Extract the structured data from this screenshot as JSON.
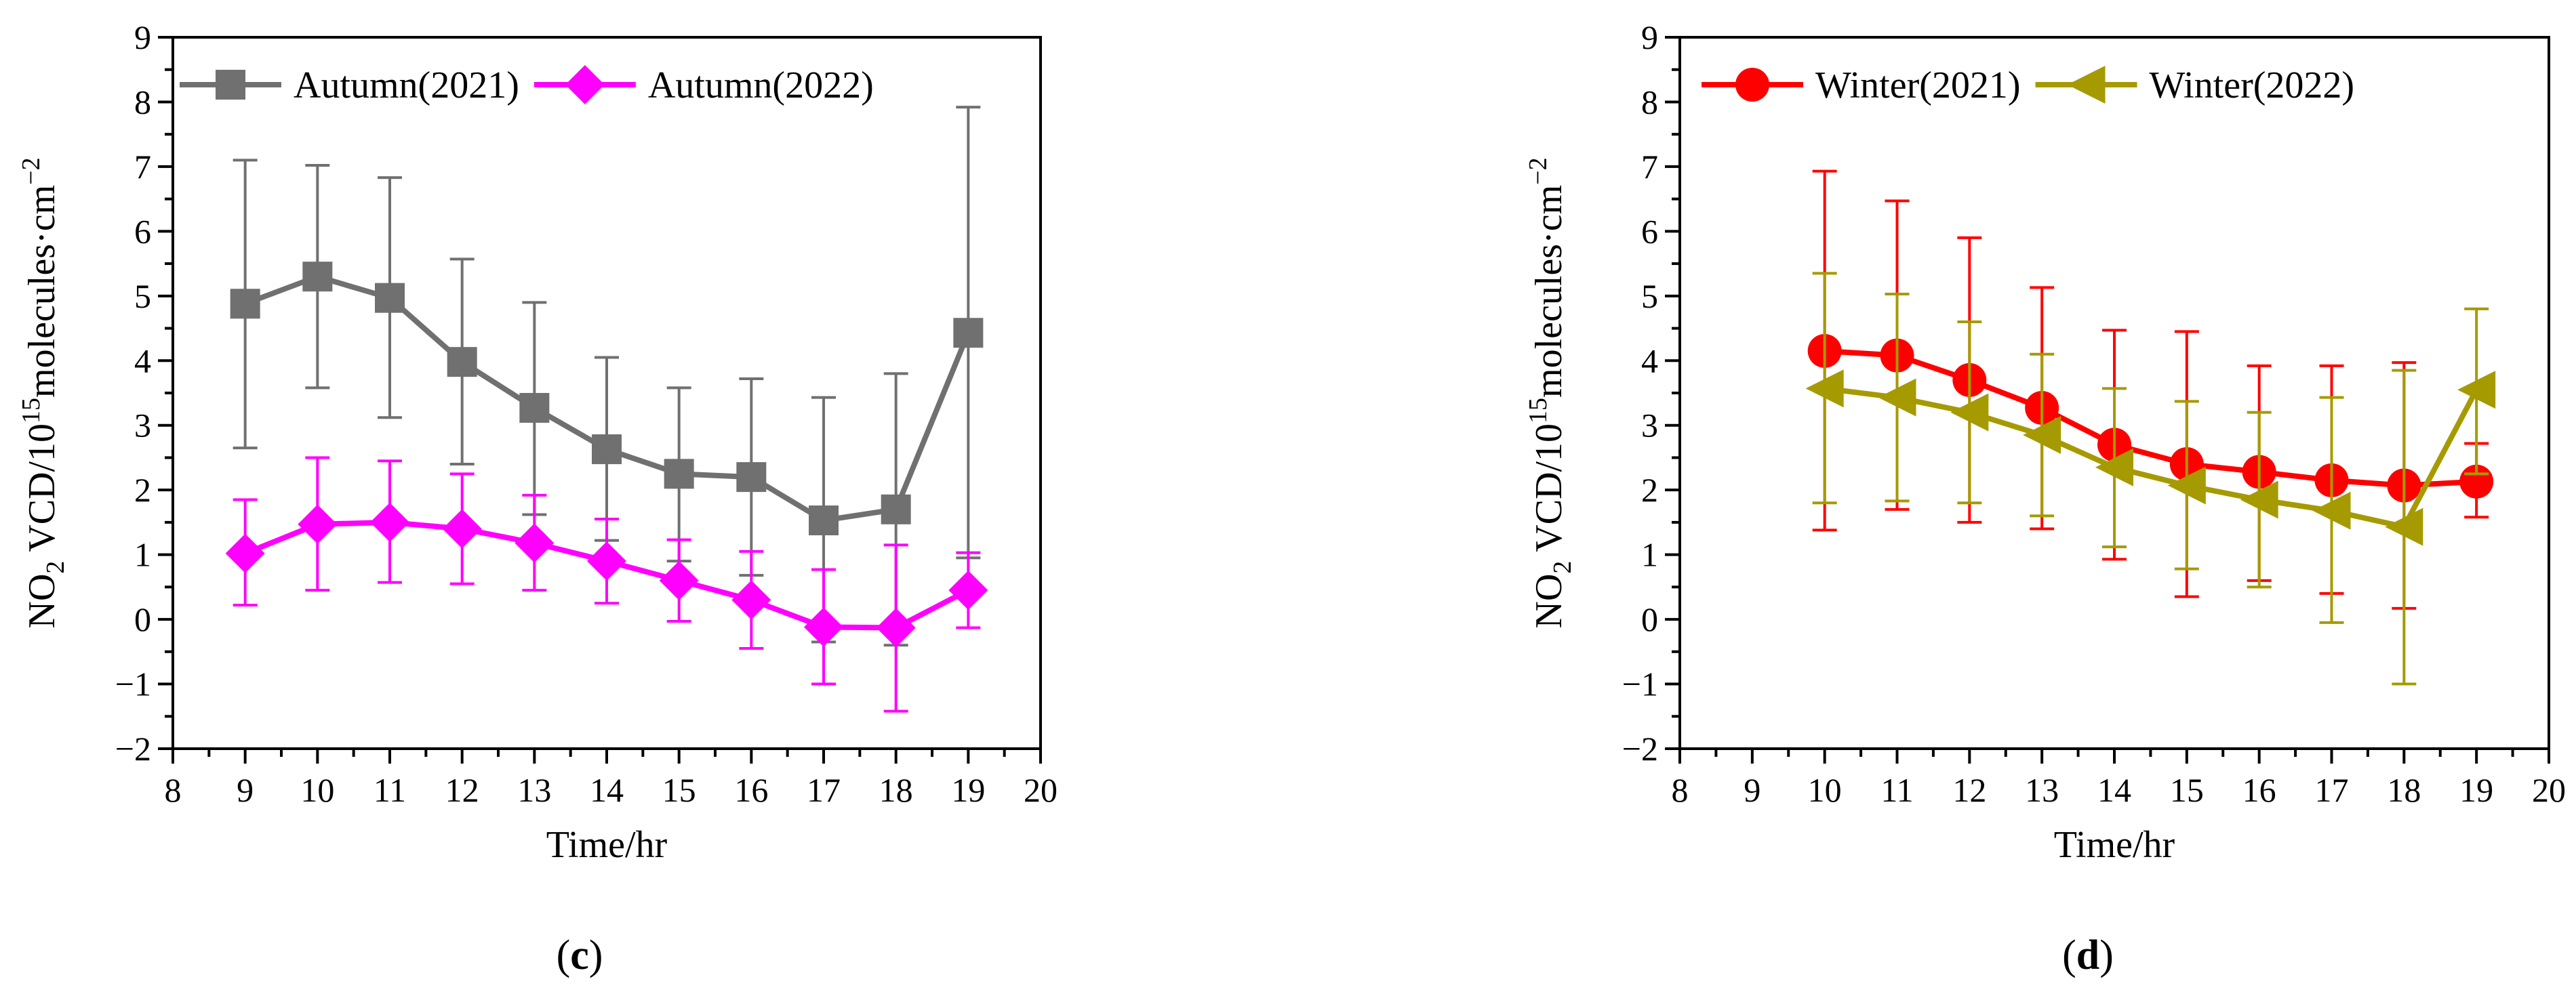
{
  "chart_data": [
    {
      "id": "c",
      "type": "line",
      "xlabel": "Time/hr",
      "ylabel_main": "NO",
      "ylabel_sub": "2",
      "ylabel_rest": " VCD/10",
      "ylabel_exp": "15",
      "ylabel_unit": "molecules·cm",
      "ylabel_unit_exp": "−2",
      "caption_open": "(",
      "caption": "c",
      "caption_close": ")",
      "xlim": [
        8,
        20
      ],
      "ylim": [
        -2,
        9
      ],
      "xticks": [
        8,
        9,
        10,
        11,
        12,
        13,
        14,
        15,
        16,
        17,
        18,
        19,
        20
      ],
      "yticks": [
        -2,
        -1,
        0,
        1,
        2,
        3,
        4,
        5,
        6,
        7,
        8,
        9
      ],
      "ytick_labels": [
        "−2",
        "−1",
        "0",
        "1",
        "2",
        "3",
        "4",
        "5",
        "6",
        "7",
        "8",
        "9"
      ],
      "series": [
        {
          "name": "Autumn(2021)",
          "color": "#707070",
          "marker": "square",
          "x": [
            9,
            10,
            11,
            12,
            13,
            14,
            15,
            16,
            17,
            18,
            19
          ],
          "y": [
            4.88,
            5.3,
            4.97,
            3.98,
            3.27,
            2.63,
            2.25,
            2.2,
            1.53,
            1.7,
            4.43
          ],
          "err_low": [
            2.65,
            3.58,
            3.12,
            2.4,
            1.62,
            1.22,
            0.9,
            0.68,
            -0.35,
            -0.4,
            0.95
          ],
          "err_high": [
            7.1,
            7.02,
            6.83,
            5.57,
            4.9,
            4.05,
            3.58,
            3.72,
            3.43,
            3.8,
            7.92
          ]
        },
        {
          "name": "Autumn(2022)",
          "color": "#ff00ff",
          "marker": "diamond",
          "x": [
            9,
            10,
            11,
            12,
            13,
            14,
            15,
            16,
            17,
            18,
            19
          ],
          "y": [
            1.02,
            1.47,
            1.5,
            1.4,
            1.18,
            0.9,
            0.6,
            0.3,
            -0.12,
            -0.13,
            0.45
          ],
          "err_low": [
            0.22,
            0.45,
            0.57,
            0.55,
            0.45,
            0.25,
            -0.03,
            -0.45,
            -1.0,
            -1.42,
            -0.13
          ],
          "err_high": [
            1.85,
            2.5,
            2.45,
            2.25,
            1.92,
            1.55,
            1.23,
            1.05,
            0.77,
            1.15,
            1.03
          ]
        }
      ]
    },
    {
      "id": "d",
      "type": "line",
      "xlabel": "Time/hr",
      "ylabel_main": "NO",
      "ylabel_sub": "2",
      "ylabel_rest": " VCD/10",
      "ylabel_exp": "15",
      "ylabel_unit": "molecules·cm",
      "ylabel_unit_exp": "−2",
      "caption_open": "(",
      "caption": "d",
      "caption_close": ")",
      "xlim": [
        8,
        20
      ],
      "ylim": [
        -2,
        9
      ],
      "xticks": [
        8,
        9,
        10,
        11,
        12,
        13,
        14,
        15,
        16,
        17,
        18,
        19,
        20
      ],
      "yticks": [
        -2,
        -1,
        0,
        1,
        2,
        3,
        4,
        5,
        6,
        7,
        8,
        9
      ],
      "ytick_labels": [
        "−2",
        "−1",
        "0",
        "1",
        "2",
        "3",
        "4",
        "5",
        "6",
        "7",
        "8",
        "9"
      ],
      "series": [
        {
          "name": "Winter(2021)",
          "color": "#ff0000",
          "marker": "circle",
          "x": [
            10,
            11,
            12,
            13,
            14,
            15,
            16,
            17,
            18,
            19
          ],
          "y": [
            4.15,
            4.08,
            3.7,
            3.27,
            2.7,
            2.4,
            2.28,
            2.15,
            2.07,
            2.13
          ],
          "err_low": [
            1.38,
            1.7,
            1.5,
            1.4,
            0.93,
            0.35,
            0.6,
            0.4,
            0.17,
            1.58
          ],
          "err_high": [
            6.93,
            6.47,
            5.9,
            5.13,
            4.47,
            4.45,
            3.92,
            3.92,
            3.97,
            2.72
          ]
        },
        {
          "name": "Winter(2022)",
          "color": "#a59a00",
          "marker": "triangle-left",
          "x": [
            10,
            11,
            12,
            13,
            14,
            15,
            16,
            17,
            18,
            19
          ],
          "y": [
            3.57,
            3.43,
            3.2,
            2.85,
            2.35,
            2.07,
            1.85,
            1.68,
            1.43,
            3.55
          ],
          "err_low": [
            1.8,
            1.83,
            1.8,
            1.6,
            1.12,
            0.78,
            0.5,
            -0.05,
            -1.0,
            2.25
          ],
          "err_high": [
            5.35,
            5.03,
            4.6,
            4.1,
            3.57,
            3.37,
            3.2,
            3.43,
            3.85,
            4.8
          ]
        }
      ]
    }
  ]
}
